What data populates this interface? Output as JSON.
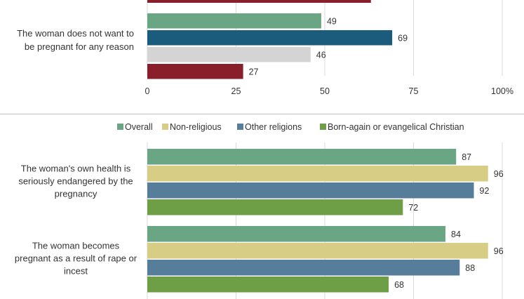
{
  "chart_data": [
    {
      "type": "bar",
      "orientation": "horizontal",
      "categories": [
        "The woman does not want to be pregnant for any reason"
      ],
      "series": [
        {
          "values": [
            49
          ],
          "color": "#6aa584"
        },
        {
          "values": [
            69
          ],
          "color": "#1b5b7c"
        },
        {
          "values": [
            46
          ],
          "color": "#d4d4d4"
        },
        {
          "values": [
            27
          ],
          "color": "#8a1f2c"
        }
      ],
      "xlim": [
        0,
        100
      ],
      "ticks": [
        "0",
        "25",
        "50",
        "75",
        "100%"
      ],
      "grid": true
    },
    {
      "type": "bar",
      "orientation": "horizontal",
      "legend_position": "top",
      "categories": [
        "The woman's own health is seriously endangered by the pregnancy",
        "The woman becomes pregnant as a result of rape or incest"
      ],
      "series": [
        {
          "name": "Overall",
          "values": [
            87,
            84
          ],
          "color": "#6aa584"
        },
        {
          "name": "Non-religious",
          "values": [
            96,
            96
          ],
          "color": "#d7cd84"
        },
        {
          "name": "Other religions",
          "values": [
            92,
            88
          ],
          "color": "#567d99"
        },
        {
          "name": "Born-again or evangelical Christian",
          "values": [
            72,
            68
          ],
          "color": "#6e9e45"
        }
      ],
      "xlim": [
        0,
        100
      ],
      "grid": true
    }
  ]
}
